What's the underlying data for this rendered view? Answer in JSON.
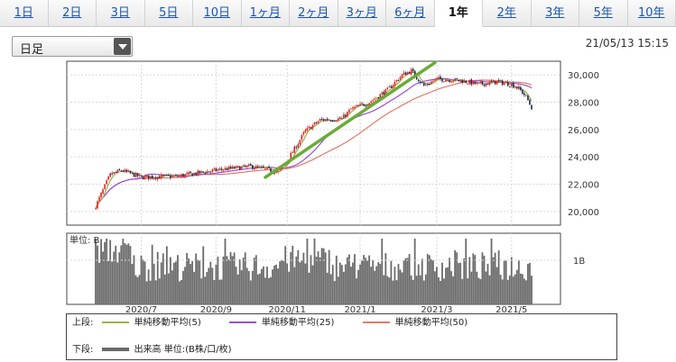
{
  "tabs": [
    "1日",
    "2日",
    "3日",
    "5日",
    "10日",
    "1ヶ月",
    "2ヶ月",
    "3ヶ月",
    "6ヶ月",
    "1年",
    "2年",
    "3年",
    "5年",
    "10年"
  ],
  "active_tab": "1年",
  "selector": {
    "label": "日足"
  },
  "timestamp": "21/05/13 15:15",
  "colors": {
    "candle_up": "#e02020",
    "candle_down": "#1a2a55",
    "ma5": "#9ab34a",
    "ma25": "#9a4fd0",
    "ma50": "#e07a6a",
    "trend": "#6aab38",
    "volume": "#6a6a6a"
  },
  "chart_data": {
    "type": "candlestick",
    "price_axis": {
      "ylim": [
        19000,
        31000
      ],
      "ticks": [
        "20,000",
        "22,000",
        "24,000",
        "26,000",
        "28,000",
        "30,000"
      ]
    },
    "x_ticks": [
      "2020/7",
      "2020/9",
      "2020/11",
      "2021/1",
      "2021/3",
      "2021/5"
    ],
    "volume_axis": {
      "unit_label": "単位: B",
      "tick_label": "1B"
    },
    "price_path": [
      [
        0,
        20400
      ],
      [
        8,
        22700
      ],
      [
        14,
        23000
      ],
      [
        25,
        22500
      ],
      [
        45,
        22600
      ],
      [
        70,
        23100
      ],
      [
        85,
        23300
      ],
      [
        100,
        22900
      ],
      [
        104,
        23500
      ],
      [
        115,
        25900
      ],
      [
        123,
        26700
      ],
      [
        135,
        26800
      ],
      [
        140,
        27500
      ],
      [
        150,
        28000
      ],
      [
        160,
        28900
      ],
      [
        168,
        30000
      ],
      [
        173,
        30300
      ],
      [
        180,
        29200
      ],
      [
        187,
        29700
      ],
      [
        200,
        29600
      ],
      [
        210,
        29300
      ],
      [
        220,
        29500
      ],
      [
        228,
        29300
      ],
      [
        232,
        29000
      ],
      [
        236,
        28400
      ],
      [
        239,
        27600
      ]
    ],
    "trend_line": {
      "start": [
        93,
        22500
      ],
      "end": [
        186,
        30900
      ]
    },
    "series": [
      {
        "name": "単純移動平均(5)",
        "period": 5
      },
      {
        "name": "単純移動平均(25)",
        "period": 25
      },
      {
        "name": "単純移動平均(50)",
        "period": 50
      }
    ],
    "legend": {
      "top_label": "上段:",
      "bottom_label": "下段:",
      "volume_text": "出来高 単位:(B株/口/枚)"
    }
  }
}
